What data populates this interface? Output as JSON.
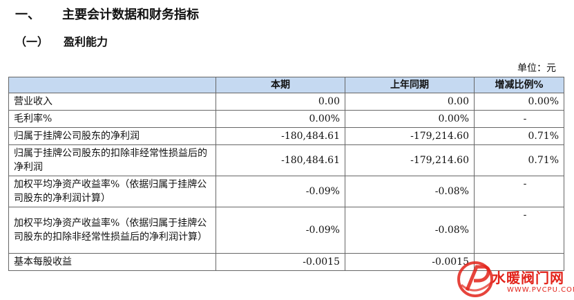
{
  "section1": {
    "num": "一、",
    "title": "主要会计数据和财务指标"
  },
  "section2": {
    "num": "（一）",
    "title": "盈利能力"
  },
  "unit": "单位：元",
  "table": {
    "headers": [
      "",
      "本期",
      "上年同期",
      "增减比例%"
    ],
    "rows": [
      {
        "label": "营业收入",
        "current": "0.00",
        "prior": "0.00",
        "change": "0.00%"
      },
      {
        "label": "毛利率%",
        "current": "0.00%",
        "prior": "0.00%",
        "change": "-"
      },
      {
        "label": "归属于挂牌公司股东的净利润",
        "current": "-180,484.61",
        "prior": "-179,214.60",
        "change": "0.71%"
      },
      {
        "label": "归属于挂牌公司股东的扣除非经常性损益后的净利润",
        "current": "-180,484.61",
        "prior": "-179,214.60",
        "change": "0.71%"
      },
      {
        "label": "加权平均净资产收益率%（依据归属于挂牌公司股东的净利润计算）",
        "current": "-0.09%",
        "prior": "-0.08%",
        "change": "-"
      },
      {
        "label": "加权平均净资产收益率%（依据归属于挂牌公司股东的扣除非经常性损益后的净利润计算）",
        "current": "-0.09%",
        "prior": "-0.08%",
        "change": "-"
      },
      {
        "label": "基本每股收益",
        "current": "-0.0015",
        "prior": "-0.0015",
        "change": ""
      }
    ]
  },
  "watermark": {
    "brand": "水暖阀门网",
    "url": "WWW.PVCPU.COM",
    "color": "#e2231a"
  }
}
